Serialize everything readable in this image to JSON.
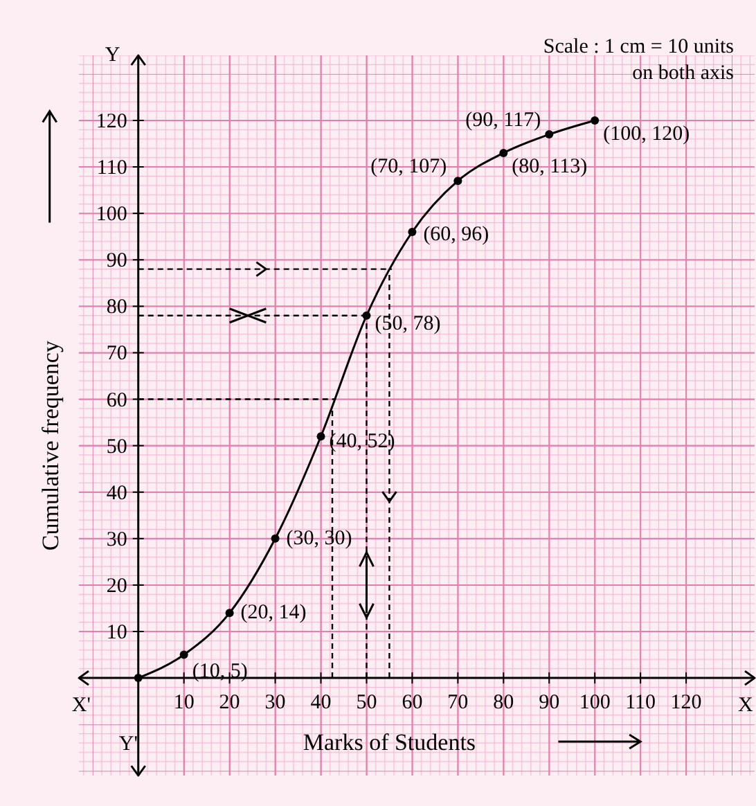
{
  "chart_data": {
    "type": "line",
    "xlabel": "Marks of Students",
    "ylabel": "Cumulative frequency",
    "x": [
      0,
      10,
      20,
      30,
      40,
      50,
      60,
      70,
      80,
      90,
      100
    ],
    "series": [
      {
        "color": "#000000",
        "values": [
          0,
          5,
          14,
          30,
          52,
          78,
          96,
          107,
          113,
          117,
          120
        ],
        "value_labels": [
          null,
          "(10, 5)",
          "(20, 14)",
          "(30, 30)",
          "(40, 52)",
          "(50, 78)",
          "(60, 96)",
          "(70, 107)",
          "(80, 113)",
          "(90, 117)",
          "(100, 120)"
        ]
      }
    ],
    "xlim": [
      -13,
      135
    ],
    "ylim": [
      -21,
      134
    ],
    "xticks": [
      10,
      20,
      30,
      40,
      50,
      60,
      70,
      80,
      90,
      100,
      110,
      120
    ],
    "yticks": [
      10,
      20,
      30,
      40,
      50,
      60,
      70,
      80,
      90,
      100,
      110,
      120
    ],
    "grid": true,
    "marker": "circle",
    "line_style": "solid",
    "ref_lines": [
      {
        "axis": "y",
        "value": 88,
        "line_style": "dashed"
      },
      {
        "axis": "y",
        "value": 78,
        "line_style": "dashed"
      },
      {
        "axis": "y",
        "value": 60,
        "line_style": "dashed"
      },
      {
        "axis": "x",
        "value": 42.5,
        "line_style": "dashed"
      },
      {
        "axis": "x",
        "value": 50,
        "line_style": "dashed"
      },
      {
        "axis": "x",
        "value": 55,
        "line_style": "dashed"
      }
    ],
    "annotations": [
      "Scale : 1 cm = 10 units\non both axis",
      "X'",
      "X",
      "Y",
      "Y'"
    ]
  }
}
